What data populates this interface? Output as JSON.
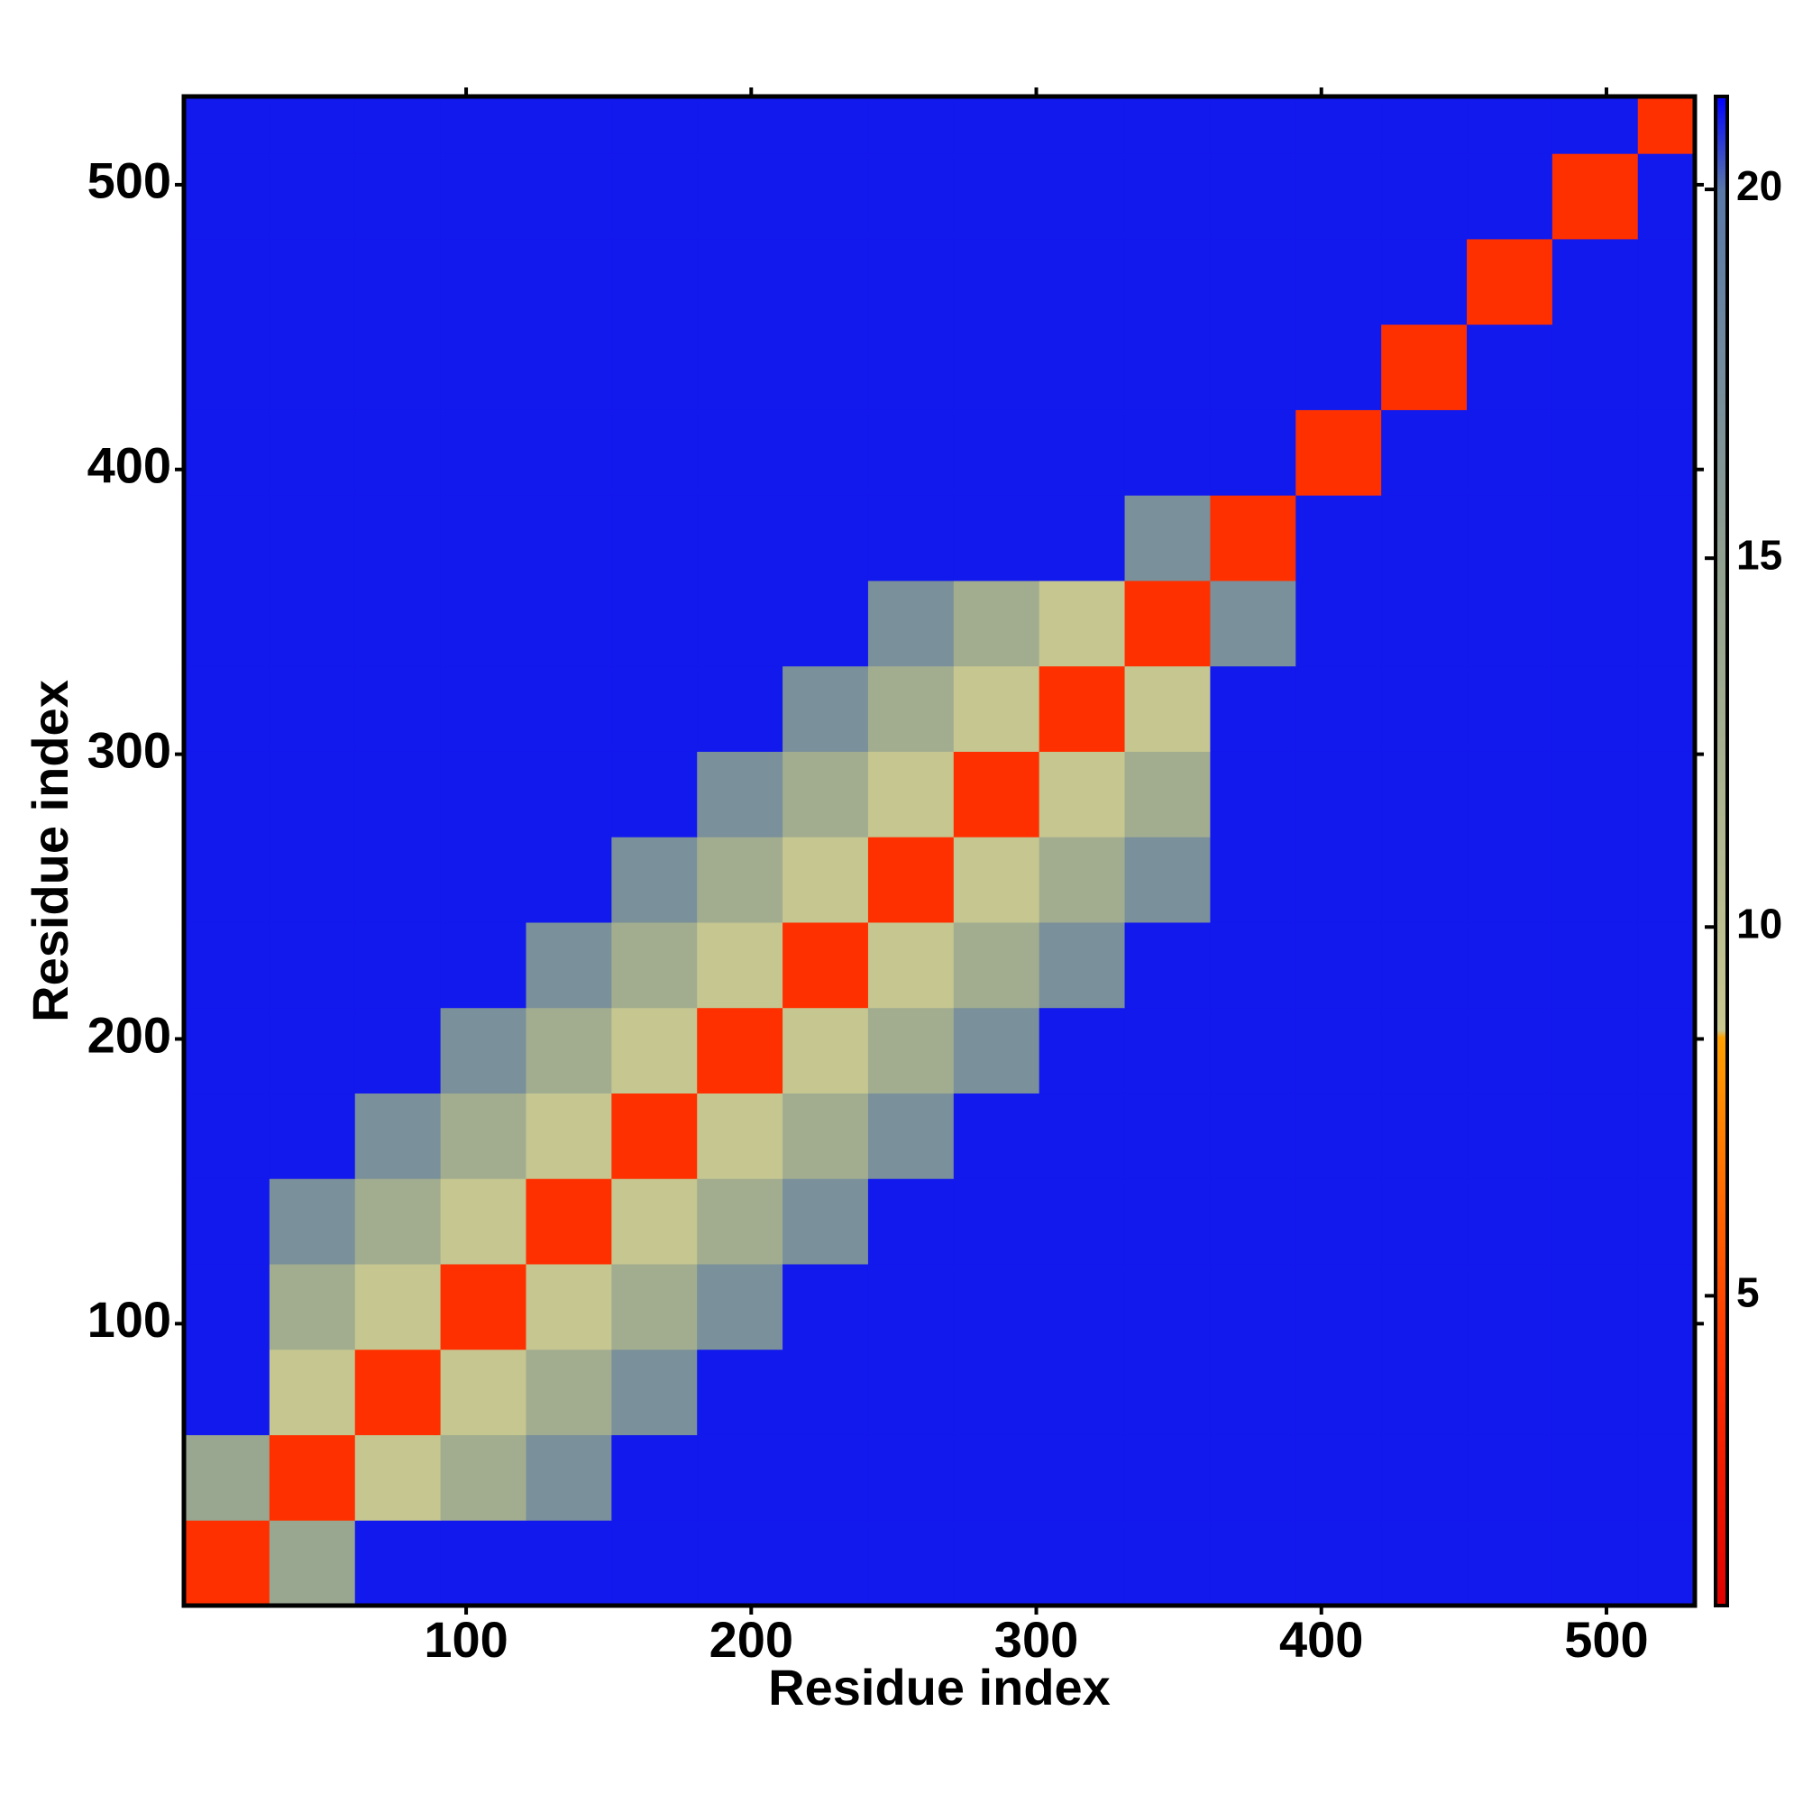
{
  "chart_data": {
    "type": "heatmap",
    "xlabel": "Residue index",
    "ylabel": "Residue index",
    "xlim": [
      1,
      531
    ],
    "ylim": [
      1,
      531
    ],
    "xticks": [
      100,
      200,
      300,
      400,
      500
    ],
    "yticks": [
      100,
      200,
      300,
      400,
      500
    ],
    "x_edges": [
      1,
      31,
      61,
      91,
      121,
      151,
      181,
      211,
      241,
      271,
      301,
      331,
      361,
      391,
      421,
      451,
      481,
      511,
      531
    ],
    "y_edges": [
      1,
      31,
      61,
      91,
      121,
      151,
      181,
      211,
      241,
      271,
      301,
      331,
      361,
      391,
      421,
      451,
      481,
      511,
      531
    ],
    "z": [
      [
        4,
        14,
        21,
        21,
        21,
        21,
        21,
        21,
        21,
        21,
        21,
        21,
        21,
        21,
        21,
        21,
        21,
        21
      ],
      [
        14,
        4,
        9,
        13,
        17,
        21,
        21,
        21,
        21,
        21,
        21,
        21,
        21,
        21,
        21,
        21,
        21,
        21
      ],
      [
        21,
        9,
        4,
        9,
        13,
        17,
        21,
        21,
        21,
        21,
        21,
        21,
        21,
        21,
        21,
        21,
        21,
        21
      ],
      [
        21,
        13,
        9,
        4,
        9,
        13,
        17,
        21,
        21,
        21,
        21,
        21,
        21,
        21,
        21,
        21,
        21,
        21
      ],
      [
        21,
        17,
        13,
        9,
        4,
        9,
        13,
        17,
        21,
        21,
        21,
        21,
        21,
        21,
        21,
        21,
        21,
        21
      ],
      [
        21,
        21,
        17,
        13,
        9,
        4,
        9,
        13,
        17,
        21,
        21,
        21,
        21,
        21,
        21,
        21,
        21,
        21
      ],
      [
        21,
        21,
        21,
        17,
        13,
        9,
        4,
        9,
        13,
        17,
        21,
        21,
        21,
        21,
        21,
        21,
        21,
        21
      ],
      [
        21,
        21,
        21,
        21,
        17,
        13,
        9,
        4,
        9,
        13,
        17,
        21,
        21,
        21,
        21,
        21,
        21,
        21
      ],
      [
        21,
        21,
        21,
        21,
        21,
        17,
        13,
        9,
        4,
        9,
        13,
        17,
        21,
        21,
        21,
        21,
        21,
        21
      ],
      [
        21,
        21,
        21,
        21,
        21,
        21,
        17,
        13,
        9,
        4,
        9,
        13,
        21,
        21,
        21,
        21,
        21,
        21
      ],
      [
        21,
        21,
        21,
        21,
        21,
        21,
        21,
        17,
        13,
        9,
        4,
        9,
        21,
        21,
        21,
        21,
        21,
        21
      ],
      [
        21,
        21,
        21,
        21,
        21,
        21,
        21,
        21,
        17,
        13,
        9,
        4,
        17,
        21,
        21,
        21,
        21,
        21
      ],
      [
        21,
        21,
        21,
        21,
        21,
        21,
        21,
        21,
        21,
        21,
        21,
        17,
        4,
        21,
        21,
        21,
        21,
        21
      ],
      [
        21,
        21,
        21,
        21,
        21,
        21,
        21,
        21,
        21,
        21,
        21,
        21,
        21,
        4,
        21,
        21,
        21,
        21
      ],
      [
        21,
        21,
        21,
        21,
        21,
        21,
        21,
        21,
        21,
        21,
        21,
        21,
        21,
        21,
        4,
        21,
        21,
        21
      ],
      [
        21,
        21,
        21,
        21,
        21,
        21,
        21,
        21,
        21,
        21,
        21,
        21,
        21,
        21,
        21,
        4,
        21,
        21
      ],
      [
        21,
        21,
        21,
        21,
        21,
        21,
        21,
        21,
        21,
        21,
        21,
        21,
        21,
        21,
        21,
        21,
        4,
        21
      ],
      [
        21,
        21,
        21,
        21,
        21,
        21,
        21,
        21,
        21,
        21,
        21,
        21,
        21,
        21,
        21,
        21,
        21,
        4
      ]
    ],
    "colorbar": {
      "lim": [
        0.8,
        21.26
      ],
      "ticks": [
        5,
        10,
        15,
        20
      ],
      "colorscale": [
        [
          0.8,
          "#e00000"
        ],
        [
          4,
          "#ff3000"
        ],
        [
          8.5,
          "#ffa000"
        ],
        [
          8.6,
          "#c8c890"
        ],
        [
          15,
          "#90a090"
        ],
        [
          20,
          "#5878a8"
        ],
        [
          21.26,
          "#0000ff"
        ]
      ]
    }
  }
}
